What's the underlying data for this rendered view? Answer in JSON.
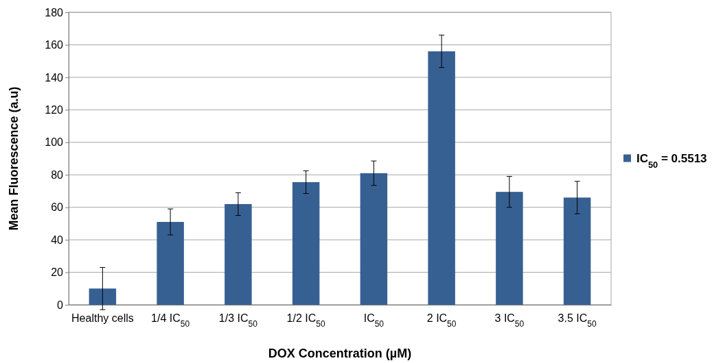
{
  "chart_data": {
    "type": "bar",
    "xlabel": "DOX Concentration (µM)",
    "ylabel": "Mean Fluorescence (a.u)",
    "categories": [
      "Healthy cells",
      "1/4 IC$_{50}$",
      "1/3 IC$_{50}$",
      "1/2 IC$_{50}$",
      "IC$_{50}$",
      "2 IC$_{50}$",
      "3 IC$_{50}$",
      "3.5 IC$_{50}$"
    ],
    "series": [
      {
        "name": "IC$_{50}$ = 0.5513",
        "color": "#376092",
        "values": [
          10,
          51,
          62,
          75.5,
          81,
          156,
          69.5,
          66
        ],
        "errors": [
          13,
          8,
          7,
          7,
          7.5,
          10,
          9.5,
          10
        ]
      }
    ],
    "ylim": [
      0,
      180
    ],
    "yticks": [
      0,
      20,
      40,
      60,
      80,
      100,
      120,
      140,
      160,
      180
    ],
    "grid": "y",
    "legend": "right"
  }
}
